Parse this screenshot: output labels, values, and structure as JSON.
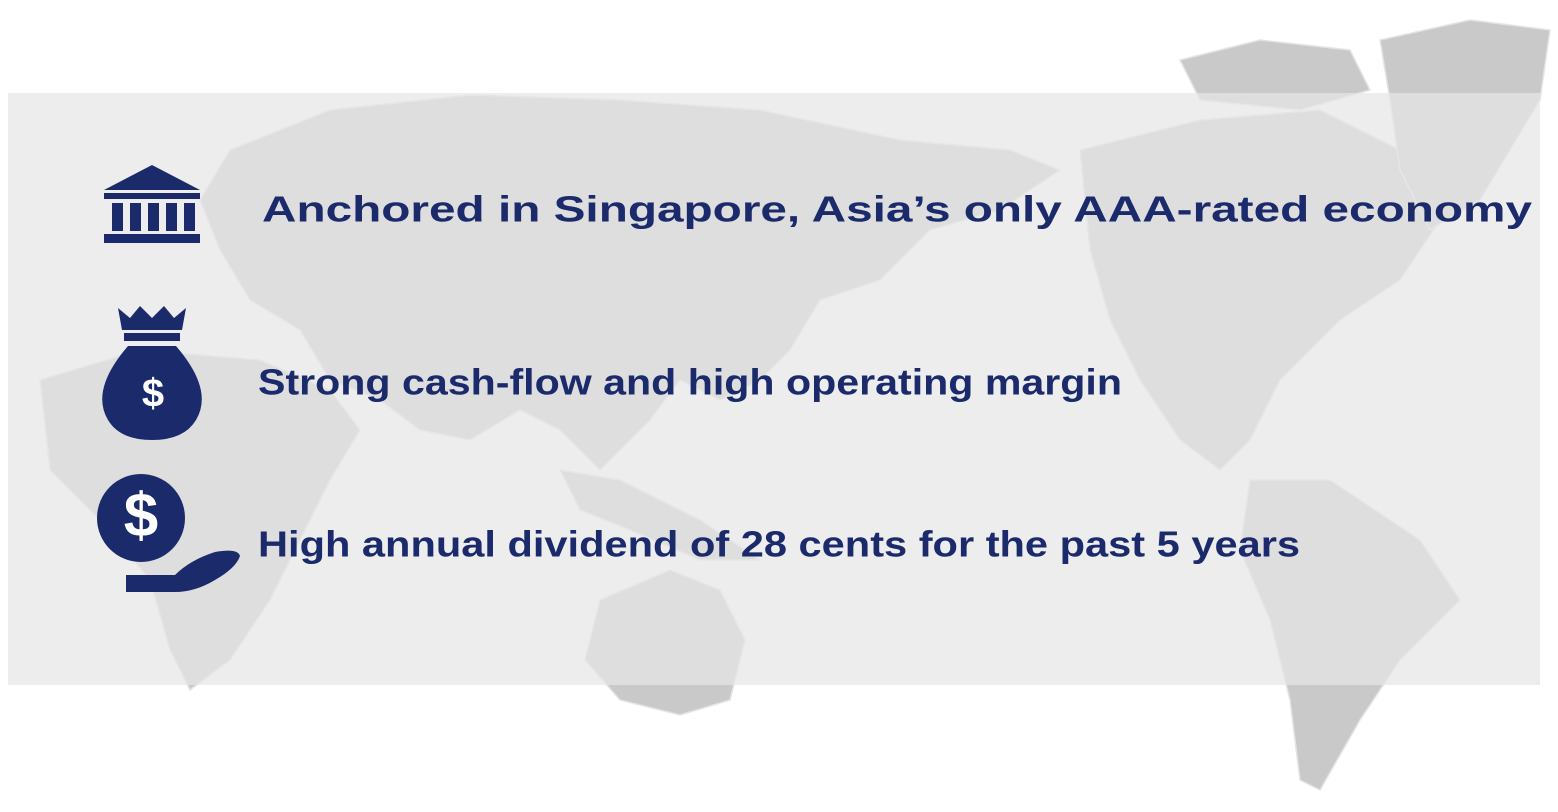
{
  "items": [
    {
      "text": "Anchored in Singapore, Asia’s only AAA-rated economy"
    },
    {
      "text": "Strong cash-flow and high operating margin"
    },
    {
      "text": "High annual dividend of 28 cents for the past 5 years"
    }
  ]
}
